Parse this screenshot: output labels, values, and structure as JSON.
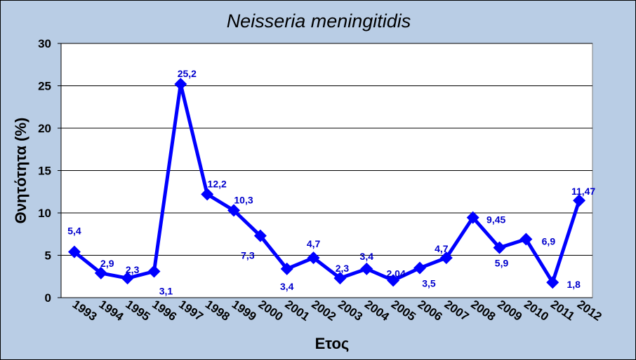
{
  "chart_data": {
    "type": "line",
    "title": "Neisseria meningitidis",
    "xlabel": "Ετος",
    "ylabel": "Θνητότητα (%)",
    "ylim": [
      0,
      30
    ],
    "yticks": [
      "0",
      "5",
      "10",
      "15",
      "20",
      "25",
      "30"
    ],
    "grid": "horizontal",
    "categories": [
      "1993",
      "1994",
      "1995",
      "1996",
      "1997",
      "1998",
      "1999",
      "2000",
      "2001",
      "2002",
      "2003",
      "2004",
      "2005",
      "2006",
      "2007",
      "2008",
      "2009",
      "2010",
      "2011",
      "2012"
    ],
    "values": [
      5.4,
      2.9,
      2.3,
      3.1,
      25.2,
      12.2,
      10.3,
      7.3,
      3.4,
      4.7,
      2.3,
      3.4,
      2.04,
      3.5,
      4.7,
      9.45,
      5.9,
      6.9,
      1.8,
      11.47
    ],
    "data_labels": [
      "5,4",
      "2,9",
      "2,3",
      "3,1",
      "25,2",
      "12,2",
      "10,3",
      "7,3",
      "3,4",
      "4,7",
      "2,3",
      "3,4",
      "2,04",
      "3,5",
      "4,7",
      "9,45",
      "5,9",
      "6,9",
      "1,8",
      "11,47"
    ],
    "colors": {
      "line": "#0000ff",
      "labels": "#0000cc",
      "background": "#b9cde5",
      "plot": "#ffffff"
    }
  }
}
